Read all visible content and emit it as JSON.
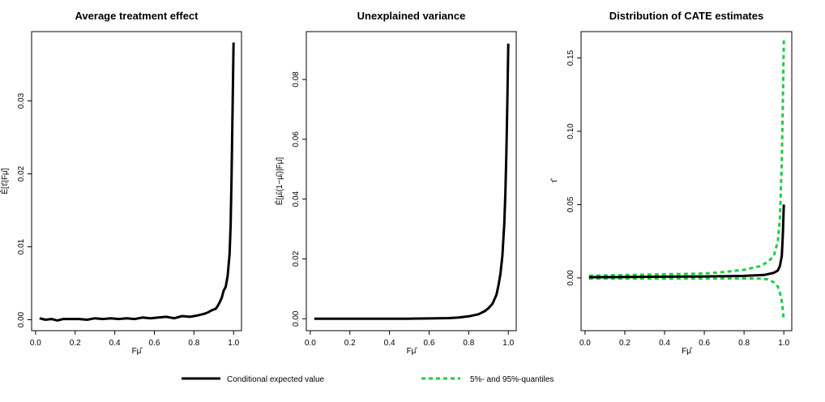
{
  "colors": {
    "main": "#000000",
    "quantile": "#22cc44"
  },
  "legend": {
    "main_label": "Conditional expected value",
    "quantile_label": "5%- and 95%-quantiles"
  },
  "chart_data": [
    {
      "type": "line",
      "title": "Average treatment effect",
      "xlabel": "Fμ̂",
      "ylabel": "Ê[τ̂ᵢ|Fμ̂]",
      "xlim": [
        -0.02,
        1.04
      ],
      "ylim": [
        -0.0015,
        0.0395
      ],
      "xticks": [
        "0.0",
        "0.2",
        "0.4",
        "0.6",
        "0.8",
        "1.0"
      ],
      "yticks": [
        "0.00",
        "0.01",
        "0.02",
        "0.03"
      ],
      "series": [
        {
          "role": "main",
          "x": [
            0.02,
            0.05,
            0.08,
            0.11,
            0.14,
            0.18,
            0.22,
            0.26,
            0.3,
            0.34,
            0.38,
            0.42,
            0.46,
            0.5,
            0.54,
            0.58,
            0.62,
            0.66,
            0.7,
            0.74,
            0.78,
            0.82,
            0.85,
            0.87,
            0.89,
            0.91,
            0.92,
            0.93,
            0.94,
            0.95,
            0.96,
            0.97,
            0.98,
            0.985,
            0.99,
            0.995,
            1.0
          ],
          "y": [
            0.0002,
            0.0,
            0.0001,
            -0.0001,
            0.0001,
            0.0001,
            0.0001,
            0.0,
            0.0002,
            0.0001,
            0.0002,
            0.0001,
            0.0002,
            0.0001,
            0.0003,
            0.0002,
            0.0003,
            0.0004,
            0.0002,
            0.0005,
            0.0004,
            0.0006,
            0.0008,
            0.001,
            0.0013,
            0.0015,
            0.0019,
            0.0024,
            0.003,
            0.004,
            0.0045,
            0.006,
            0.009,
            0.013,
            0.02,
            0.029,
            0.038
          ]
        }
      ]
    },
    {
      "type": "line",
      "title": "Unexplained variance",
      "xlabel": "Fμ̂",
      "ylabel": "Ê[μ̂ᵢ(1−μ̂ᵢ)|Fμ̂]",
      "xlim": [
        -0.02,
        1.04
      ],
      "ylim": [
        -0.004,
        0.096
      ],
      "xticks": [
        "0.0",
        "0.2",
        "0.4",
        "0.6",
        "0.8",
        "1.0"
      ],
      "yticks": [
        "0.00",
        "0.02",
        "0.04",
        "0.06",
        "0.08"
      ],
      "series": [
        {
          "role": "main",
          "x": [
            0.02,
            0.1,
            0.2,
            0.3,
            0.4,
            0.5,
            0.6,
            0.7,
            0.75,
            0.8,
            0.85,
            0.88,
            0.9,
            0.92,
            0.94,
            0.95,
            0.96,
            0.97,
            0.98,
            0.985,
            0.99,
            0.995,
            1.0
          ],
          "y": [
            0.0,
            0.0,
            0.0,
            0.0,
            0.0,
            0.0,
            0.0001,
            0.0002,
            0.0004,
            0.0008,
            0.0015,
            0.0025,
            0.0035,
            0.005,
            0.008,
            0.011,
            0.015,
            0.021,
            0.032,
            0.042,
            0.055,
            0.072,
            0.092
          ]
        }
      ]
    },
    {
      "type": "line",
      "title": "Distribution of CATE estimates",
      "xlabel": "Fμ̂",
      "ylabel": "τ̂",
      "xlim": [
        -0.02,
        1.04
      ],
      "ylim": [
        -0.036,
        0.168
      ],
      "xticks": [
        "0.0",
        "0.2",
        "0.4",
        "0.6",
        "0.8",
        "1.0"
      ],
      "yticks": [
        "0.00",
        "0.05",
        "0.10",
        "0.15"
      ],
      "series": [
        {
          "role": "main",
          "x": [
            0.02,
            0.2,
            0.4,
            0.6,
            0.8,
            0.9,
            0.95,
            0.97,
            0.98,
            0.99,
            0.995,
            1.0
          ],
          "y": [
            0.0005,
            0.0006,
            0.0008,
            0.001,
            0.0014,
            0.002,
            0.0035,
            0.005,
            0.008,
            0.015,
            0.03,
            0.05
          ]
        },
        {
          "role": "quantile",
          "x": [
            0.02,
            0.2,
            0.4,
            0.6,
            0.7,
            0.8,
            0.88,
            0.92,
            0.95,
            0.97,
            0.98,
            0.99,
            0.995,
            1.0
          ],
          "y": [
            0.0015,
            0.002,
            0.0025,
            0.003,
            0.004,
            0.0055,
            0.008,
            0.011,
            0.015,
            0.025,
            0.04,
            0.08,
            0.12,
            0.162
          ]
        },
        {
          "role": "quantile",
          "x": [
            0.02,
            0.2,
            0.4,
            0.6,
            0.7,
            0.8,
            0.88,
            0.92,
            0.95,
            0.97,
            0.98,
            0.99,
            0.995,
            1.0
          ],
          "y": [
            -0.0005,
            -0.0005,
            -0.0005,
            -0.0005,
            -0.0004,
            -0.0004,
            -0.0005,
            -0.001,
            -0.003,
            -0.006,
            -0.01,
            -0.016,
            -0.022,
            -0.029
          ]
        }
      ]
    }
  ]
}
